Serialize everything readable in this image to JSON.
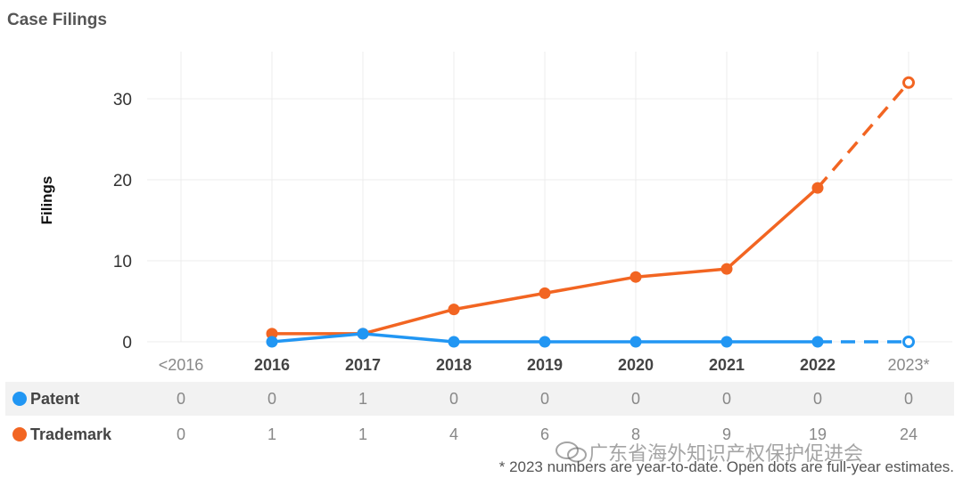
{
  "title": "Case Filings",
  "chart_data": {
    "type": "line",
    "categories": [
      "<2016",
      "2016",
      "2017",
      "2018",
      "2019",
      "2020",
      "2021",
      "2022",
      "2023*"
    ],
    "ylabel": "Filings",
    "yticks": [
      0,
      10,
      20,
      30
    ],
    "ylim": [
      0,
      35
    ],
    "grid": true,
    "series": [
      {
        "name": "Patent",
        "color": "#2196f3",
        "values": [
          null,
          0,
          1,
          0,
          0,
          0,
          0,
          0,
          0
        ],
        "table": [
          "0",
          "0",
          "1",
          "0",
          "0",
          "0",
          "0",
          "0",
          "0"
        ]
      },
      {
        "name": "Trademark",
        "color": "#f26522",
        "values": [
          null,
          1,
          1,
          4,
          6,
          8,
          9,
          19,
          32
        ],
        "table": [
          "0",
          "1",
          "1",
          "4",
          "6",
          "8",
          "9",
          "19",
          "24"
        ]
      }
    ],
    "estimate_index": 8
  },
  "footnote": "* 2023 numbers are year-to-date. Open dots are full-year estimates.",
  "watermark": "广东省海外知识产权保护促进会"
}
